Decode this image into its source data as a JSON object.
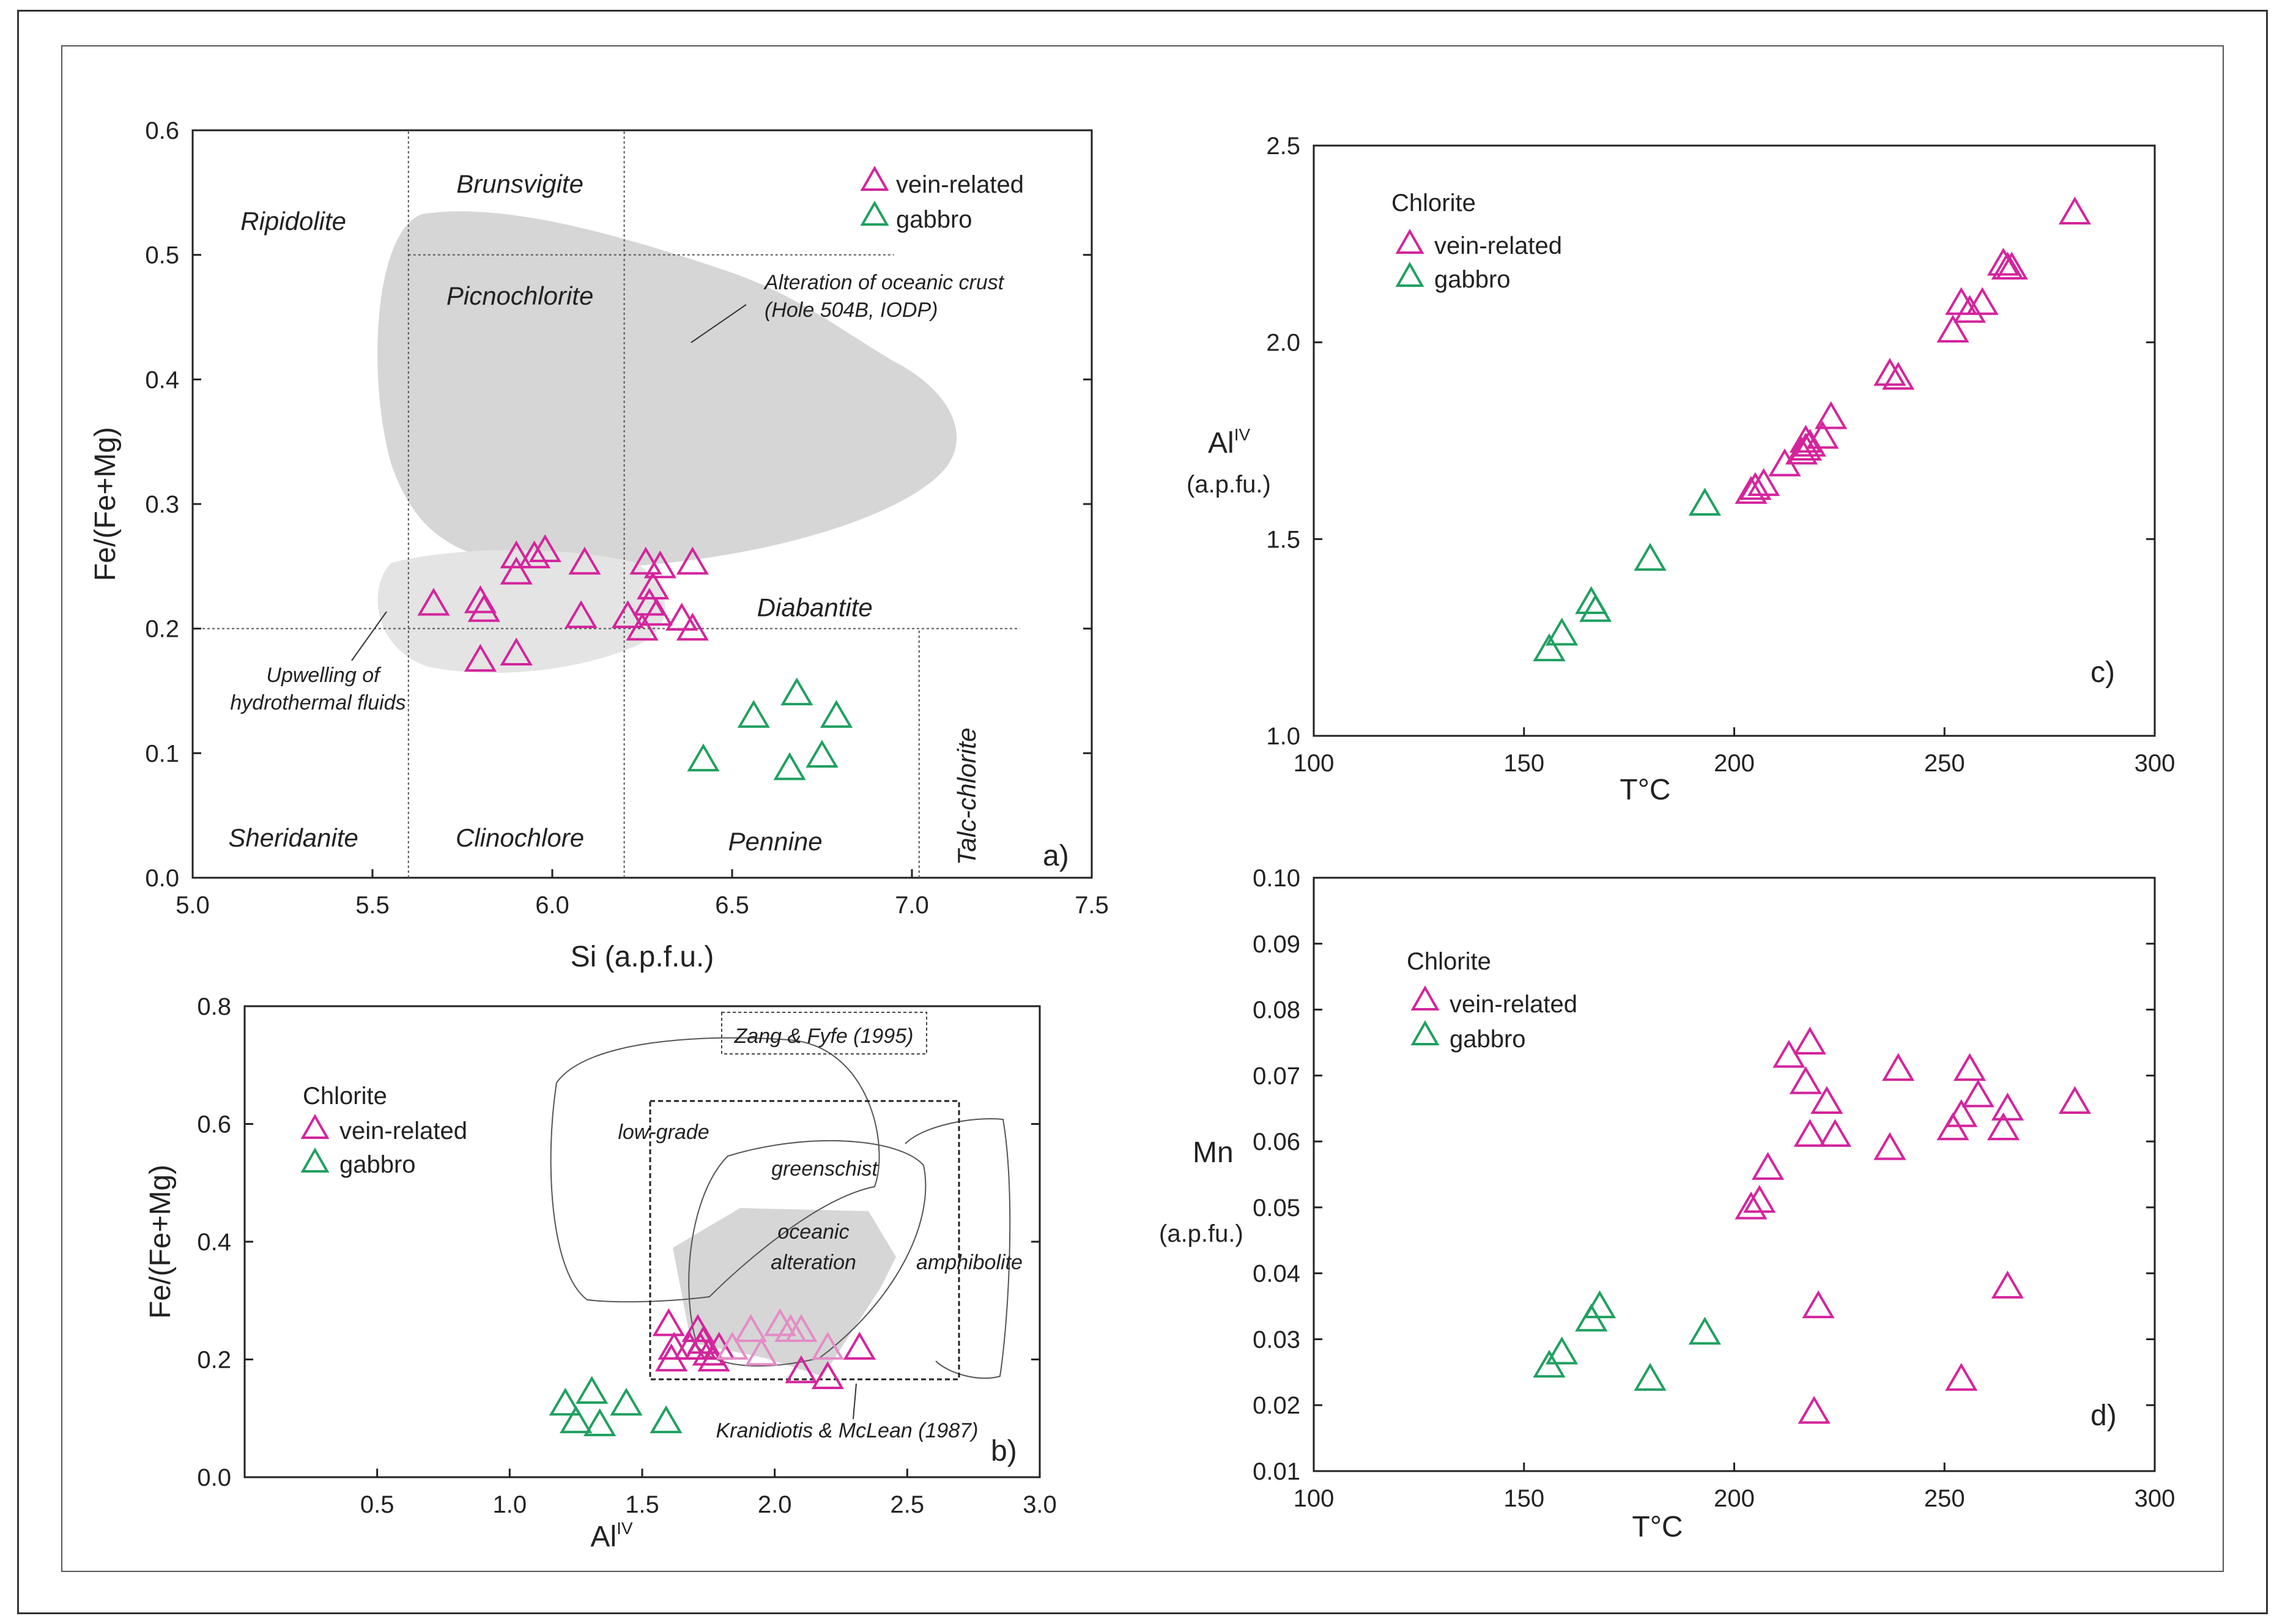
{
  "colors": {
    "vein": "#d4249c",
    "vein_light": "#e48cc6",
    "gabbro": "#20a060",
    "field_gray": "#d6d6d6"
  },
  "chart_data": [
    {
      "panel": "a)",
      "type": "scatter",
      "xlabel": "Si (a.p.f.u.)",
      "ylabel": "Fe/(Fe+Mg)",
      "xlim": [
        5.0,
        7.5
      ],
      "ylim": [
        0.0,
        0.6
      ],
      "xticks": [
        "5.0",
        "5.5",
        "6.0",
        "6.5",
        "7.0",
        "7.5"
      ],
      "yticks": [
        "0.0",
        "0.1",
        "0.2",
        "0.3",
        "0.4",
        "0.5",
        "0.6"
      ],
      "legend": {
        "vein": "vein-related",
        "gabbro": "gabbro"
      },
      "fields": [
        {
          "name": "Ripidolite",
          "x": 5.28,
          "y": 0.52
        },
        {
          "name": "Brunsvigite",
          "x": 5.91,
          "y": 0.55
        },
        {
          "name": "Picnochlorite",
          "x": 5.91,
          "y": 0.46
        },
        {
          "name": "Diabantite",
          "x": 6.73,
          "y": 0.21
        },
        {
          "name": "Sheridanite",
          "x": 5.28,
          "y": 0.025
        },
        {
          "name": "Clinochlore",
          "x": 5.91,
          "y": 0.025
        },
        {
          "name": "Pennine",
          "x": 6.62,
          "y": 0.022
        }
      ],
      "talc_label": "Talc-chlorite",
      "annotations": {
        "oceanic": [
          "Alteration of oceanic crust",
          "(Hole 504B, IODP)"
        ],
        "upwelling": [
          "Upwelling of",
          "hydrothermal fluids"
        ]
      },
      "series": [
        {
          "name": "vein-related",
          "points": [
            [
              5.67,
              0.22
            ],
            [
              5.8,
              0.222
            ],
            [
              5.81,
              0.215
            ],
            [
              5.8,
              0.175
            ],
            [
              5.9,
              0.18
            ],
            [
              5.9,
              0.258
            ],
            [
              5.9,
              0.245
            ],
            [
              5.95,
              0.258
            ],
            [
              5.98,
              0.263
            ],
            [
              6.09,
              0.253
            ],
            [
              6.08,
              0.21
            ],
            [
              6.21,
              0.21
            ],
            [
              6.26,
              0.253
            ],
            [
              6.3,
              0.25
            ],
            [
              6.39,
              0.253
            ],
            [
              6.25,
              0.2
            ],
            [
              6.27,
              0.22
            ],
            [
              6.28,
              0.233
            ],
            [
              6.29,
              0.212
            ],
            [
              6.36,
              0.208
            ],
            [
              6.39,
              0.2
            ]
          ]
        },
        {
          "name": "gabbro",
          "points": [
            [
              6.42,
              0.095
            ],
            [
              6.56,
              0.13
            ],
            [
              6.68,
              0.148
            ],
            [
              6.79,
              0.13
            ],
            [
              6.66,
              0.088
            ],
            [
              6.75,
              0.098
            ]
          ]
        }
      ]
    },
    {
      "panel": "b)",
      "type": "scatter",
      "xlabel": "Al",
      "xlabel_sup": "IV",
      "ylabel": "Fe/(Fe+Mg)",
      "xlim": [
        0.0,
        3.0
      ],
      "ylim": [
        0.0,
        0.8
      ],
      "xticks": [
        "0.5",
        "1.0",
        "1.5",
        "2.0",
        "2.5",
        "3.0"
      ],
      "yticks": [
        "0.0",
        "0.2",
        "0.4",
        "0.6",
        "0.8"
      ],
      "legend_title": "Chlorite",
      "legend": {
        "vein": "vein-related",
        "gabbro": "gabbro"
      },
      "field_labels": {
        "low": "low-grade",
        "green": "greenschist",
        "oceanic": [
          "oceanic",
          "alteration"
        ],
        "amph": "amphibolite",
        "zang": "Zang & Fyfe (1995)",
        "kran": "Kranidiotis & McLean (1987)"
      },
      "series": [
        {
          "name": "vein-related",
          "points": [
            [
              1.6,
              0.26
            ],
            [
              1.61,
              0.2
            ],
            [
              1.62,
              0.22
            ],
            [
              1.68,
              0.22
            ],
            [
              1.71,
              0.25
            ],
            [
              1.72,
              0.22
            ],
            [
              1.73,
              0.23
            ],
            [
              1.75,
              0.21
            ],
            [
              1.77,
              0.2
            ],
            [
              1.79,
              0.22
            ],
            [
              2.1,
              0.18
            ],
            [
              2.2,
              0.17
            ],
            [
              2.32,
              0.22
            ]
          ]
        },
        {
          "name": "vein-related (light)",
          "points": [
            [
              1.84,
              0.22
            ],
            [
              1.91,
              0.25
            ],
            [
              1.95,
              0.21
            ],
            [
              2.02,
              0.26
            ],
            [
              2.06,
              0.25
            ],
            [
              2.1,
              0.25
            ],
            [
              2.2,
              0.22
            ]
          ]
        },
        {
          "name": "gabbro",
          "points": [
            [
              1.21,
              0.125
            ],
            [
              1.25,
              0.095
            ],
            [
              1.31,
              0.145
            ],
            [
              1.34,
              0.09
            ],
            [
              1.44,
              0.125
            ],
            [
              1.59,
              0.095
            ]
          ]
        }
      ]
    },
    {
      "panel": "c)",
      "type": "scatter",
      "xlabel": "T°C",
      "ylabel": "Al",
      "ylabel_sup": "IV",
      "ylabel_unit": "(a.p.fu.)",
      "xlim": [
        100,
        300
      ],
      "ylim": [
        1.0,
        2.5
      ],
      "xticks": [
        "100",
        "150",
        "200",
        "250",
        "300"
      ],
      "yticks": [
        "1.0",
        "1.5",
        "2.0",
        "2.5"
      ],
      "legend_title": "Chlorite",
      "legend": {
        "vein": "vein-related",
        "gabbro": "gabbro"
      },
      "series": [
        {
          "name": "vein-related",
          "points": [
            [
              204,
              1.62
            ],
            [
              205,
              1.63
            ],
            [
              207,
              1.64
            ],
            [
              212,
              1.69
            ],
            [
              216,
              1.72
            ],
            [
              217,
              1.73
            ],
            [
              217,
              1.75
            ],
            [
              218,
              1.74
            ],
            [
              221,
              1.76
            ],
            [
              223,
              1.81
            ],
            [
              237,
              1.92
            ],
            [
              239,
              1.91
            ],
            [
              252,
              2.03
            ],
            [
              254,
              2.1
            ],
            [
              256,
              2.08
            ],
            [
              259,
              2.1
            ],
            [
              264,
              2.2
            ],
            [
              265,
              2.19
            ],
            [
              266,
              2.19
            ],
            [
              281,
              2.33
            ]
          ]
        },
        {
          "name": "gabbro",
          "points": [
            [
              156,
              1.22
            ],
            [
              159,
              1.26
            ],
            [
              166,
              1.34
            ],
            [
              167,
              1.32
            ],
            [
              180,
              1.45
            ],
            [
              193,
              1.59
            ]
          ]
        }
      ]
    },
    {
      "panel": "d)",
      "type": "scatter",
      "xlabel": "T°C",
      "ylabel": "Mn",
      "ylabel_unit": "(a.p.fu.)",
      "xlim": [
        100,
        300
      ],
      "ylim": [
        0.01,
        0.1
      ],
      "xticks": [
        "100",
        "150",
        "200",
        "250",
        "300"
      ],
      "yticks": [
        "0.01",
        "0.02",
        "0.03",
        "0.04",
        "0.05",
        "0.06",
        "0.07",
        "0.08",
        "0.09",
        "0.10"
      ],
      "legend_title": "Chlorite",
      "legend": {
        "vein": "vein-related",
        "gabbro": "gabbro"
      },
      "series": [
        {
          "name": "vein-related",
          "points": [
            [
              204,
              0.05
            ],
            [
              206,
              0.051
            ],
            [
              208,
              0.056
            ],
            [
              213,
              0.073
            ],
            [
              217,
              0.069
            ],
            [
              218,
              0.075
            ],
            [
              218,
              0.061
            ],
            [
              222,
              0.066
            ],
            [
              224,
              0.061
            ],
            [
              219,
              0.019
            ],
            [
              220,
              0.035
            ],
            [
              237,
              0.059
            ],
            [
              239,
              0.071
            ],
            [
              252,
              0.062
            ],
            [
              254,
              0.064
            ],
            [
              256,
              0.071
            ],
            [
              258,
              0.067
            ],
            [
              264,
              0.062
            ],
            [
              265,
              0.065
            ],
            [
              265,
              0.038
            ],
            [
              254,
              0.024
            ],
            [
              281,
              0.066
            ]
          ]
        },
        {
          "name": "gabbro",
          "points": [
            [
              156,
              0.026
            ],
            [
              159,
              0.028
            ],
            [
              166,
              0.033
            ],
            [
              168,
              0.035
            ],
            [
              180,
              0.024
            ],
            [
              193,
              0.031
            ]
          ]
        }
      ]
    }
  ]
}
